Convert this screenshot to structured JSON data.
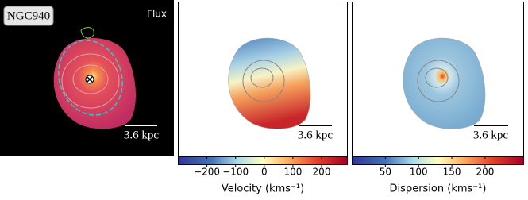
{
  "panels": [
    {
      "label": "NGC940",
      "corner_label": "Flux",
      "scale_bar": "3.6 kpc"
    },
    {
      "scale_bar": "3.6 kpc"
    },
    {
      "scale_bar": "3.6 kpc"
    }
  ],
  "colorbars": [
    {
      "label": "Velocity (kms⁻¹)",
      "lim": [
        -300,
        290
      ],
      "ticks": [
        {
          "value": -200,
          "label": "−200"
        },
        {
          "value": -100,
          "label": "−100"
        },
        0,
        100,
        200
      ]
    },
    {
      "label": "Dispersion (kms⁻¹)",
      "lim": [
        0,
        258
      ],
      "ticks": [
        50,
        100,
        150,
        200
      ]
    }
  ]
}
